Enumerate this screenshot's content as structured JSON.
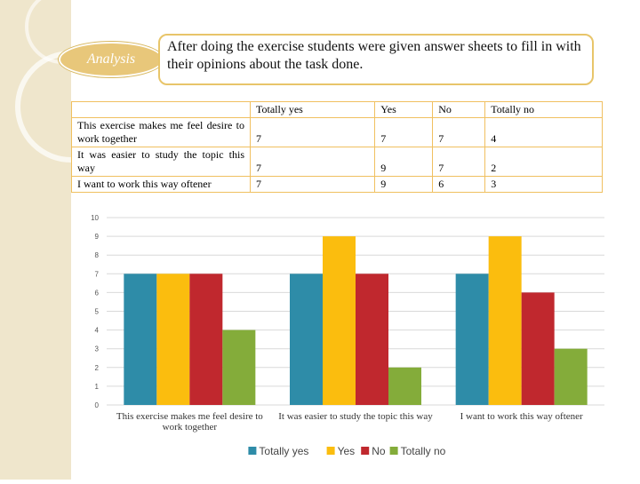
{
  "badge": "Analysis",
  "note": "After doing the exercise students were given answer sheets to fill in with their opinions about the task done.",
  "table": {
    "columns": [
      "Totally yes",
      "Yes",
      "No",
      "Totally no"
    ],
    "rows": [
      {
        "label": "This exercise makes me feel desire to work together",
        "cells": [
          7,
          7,
          7,
          4
        ]
      },
      {
        "label": "It was easier to study the topic this way",
        "cells": [
          7,
          9,
          7,
          2
        ]
      },
      {
        "label": "I want to work this way oftener",
        "cells": [
          7,
          9,
          6,
          3
        ]
      }
    ]
  },
  "chart_data": {
    "type": "bar",
    "categories": [
      "This exercise makes me feel desire to work together",
      "It was easier to study the topic this way",
      "I want to work this way oftener"
    ],
    "series": [
      {
        "name": "Totally yes",
        "color": "#2e8ca8",
        "values": [
          7,
          7,
          7
        ]
      },
      {
        "name": "Yes",
        "color": "#fbbd0e",
        "values": [
          7,
          9,
          9
        ]
      },
      {
        "name": "No",
        "color": "#c0282e",
        "values": [
          7,
          7,
          6
        ]
      },
      {
        "name": "Totally no",
        "color": "#84ac3a",
        "values": [
          4,
          2,
          3
        ]
      }
    ],
    "ylim": [
      0,
      10
    ],
    "yticks": [
      0,
      1,
      2,
      3,
      4,
      5,
      6,
      7,
      8,
      9,
      10
    ],
    "grid": true,
    "legend": "bottom"
  }
}
